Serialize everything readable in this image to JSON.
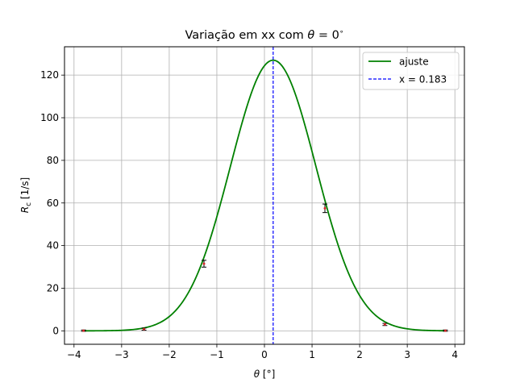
{
  "chart_data": {
    "type": "line",
    "title_main": "Variação em xx com ",
    "title_theta": "θ",
    "title_eq": " = 0",
    "title_deg": "∘",
    "xlabel_symbol": "θ",
    "xlabel_unit": " [°]",
    "ylabel_R": "R",
    "ylabel_sub": "c",
    "ylabel_unit": " [1/s]",
    "xlim": [
      -4.2,
      4.2
    ],
    "ylim": [
      -6.3,
      133.3
    ],
    "x_ticks": [
      -4,
      -3,
      -2,
      -1,
      0,
      1,
      2,
      3,
      4
    ],
    "x_tick_labels": [
      "−4",
      "−3",
      "−2",
      "−1",
      "0",
      "1",
      "2",
      "3",
      "4"
    ],
    "y_ticks": [
      0,
      20,
      40,
      60,
      80,
      100,
      120
    ],
    "y_tick_labels": [
      "0",
      "20",
      "40",
      "60",
      "80",
      "100",
      "120"
    ],
    "grid": true,
    "legend_position": "top-right",
    "legend": [
      {
        "label": "ajuste",
        "style": "solid",
        "color": "#008000"
      },
      {
        "label": "x = 0.183",
        "style": "dashed",
        "color": "#0000ff"
      }
    ],
    "fit": {
      "name": "ajuste",
      "model": "gaussian",
      "amplitude": 127,
      "center": 0.183,
      "sigma": 0.9,
      "x_range": [
        -3.8,
        3.8
      ],
      "color": "#008000"
    },
    "vline": {
      "name": "x = 0.183",
      "x": 0.183,
      "color": "#0000ff"
    },
    "points": [
      {
        "x": -3.8,
        "y": 0.1,
        "err": 0.3
      },
      {
        "x": -2.53,
        "y": 0.8,
        "err": 0.5
      },
      {
        "x": -1.27,
        "y": 31.5,
        "err": 1.6
      },
      {
        "x": 1.27,
        "y": 57.5,
        "err": 2.0
      },
      {
        "x": 2.53,
        "y": 3.0,
        "err": 0.5
      },
      {
        "x": 3.8,
        "y": 0.1,
        "err": 0.3
      }
    ],
    "point_color": "#d62728",
    "errorbar_color": "#000000"
  }
}
